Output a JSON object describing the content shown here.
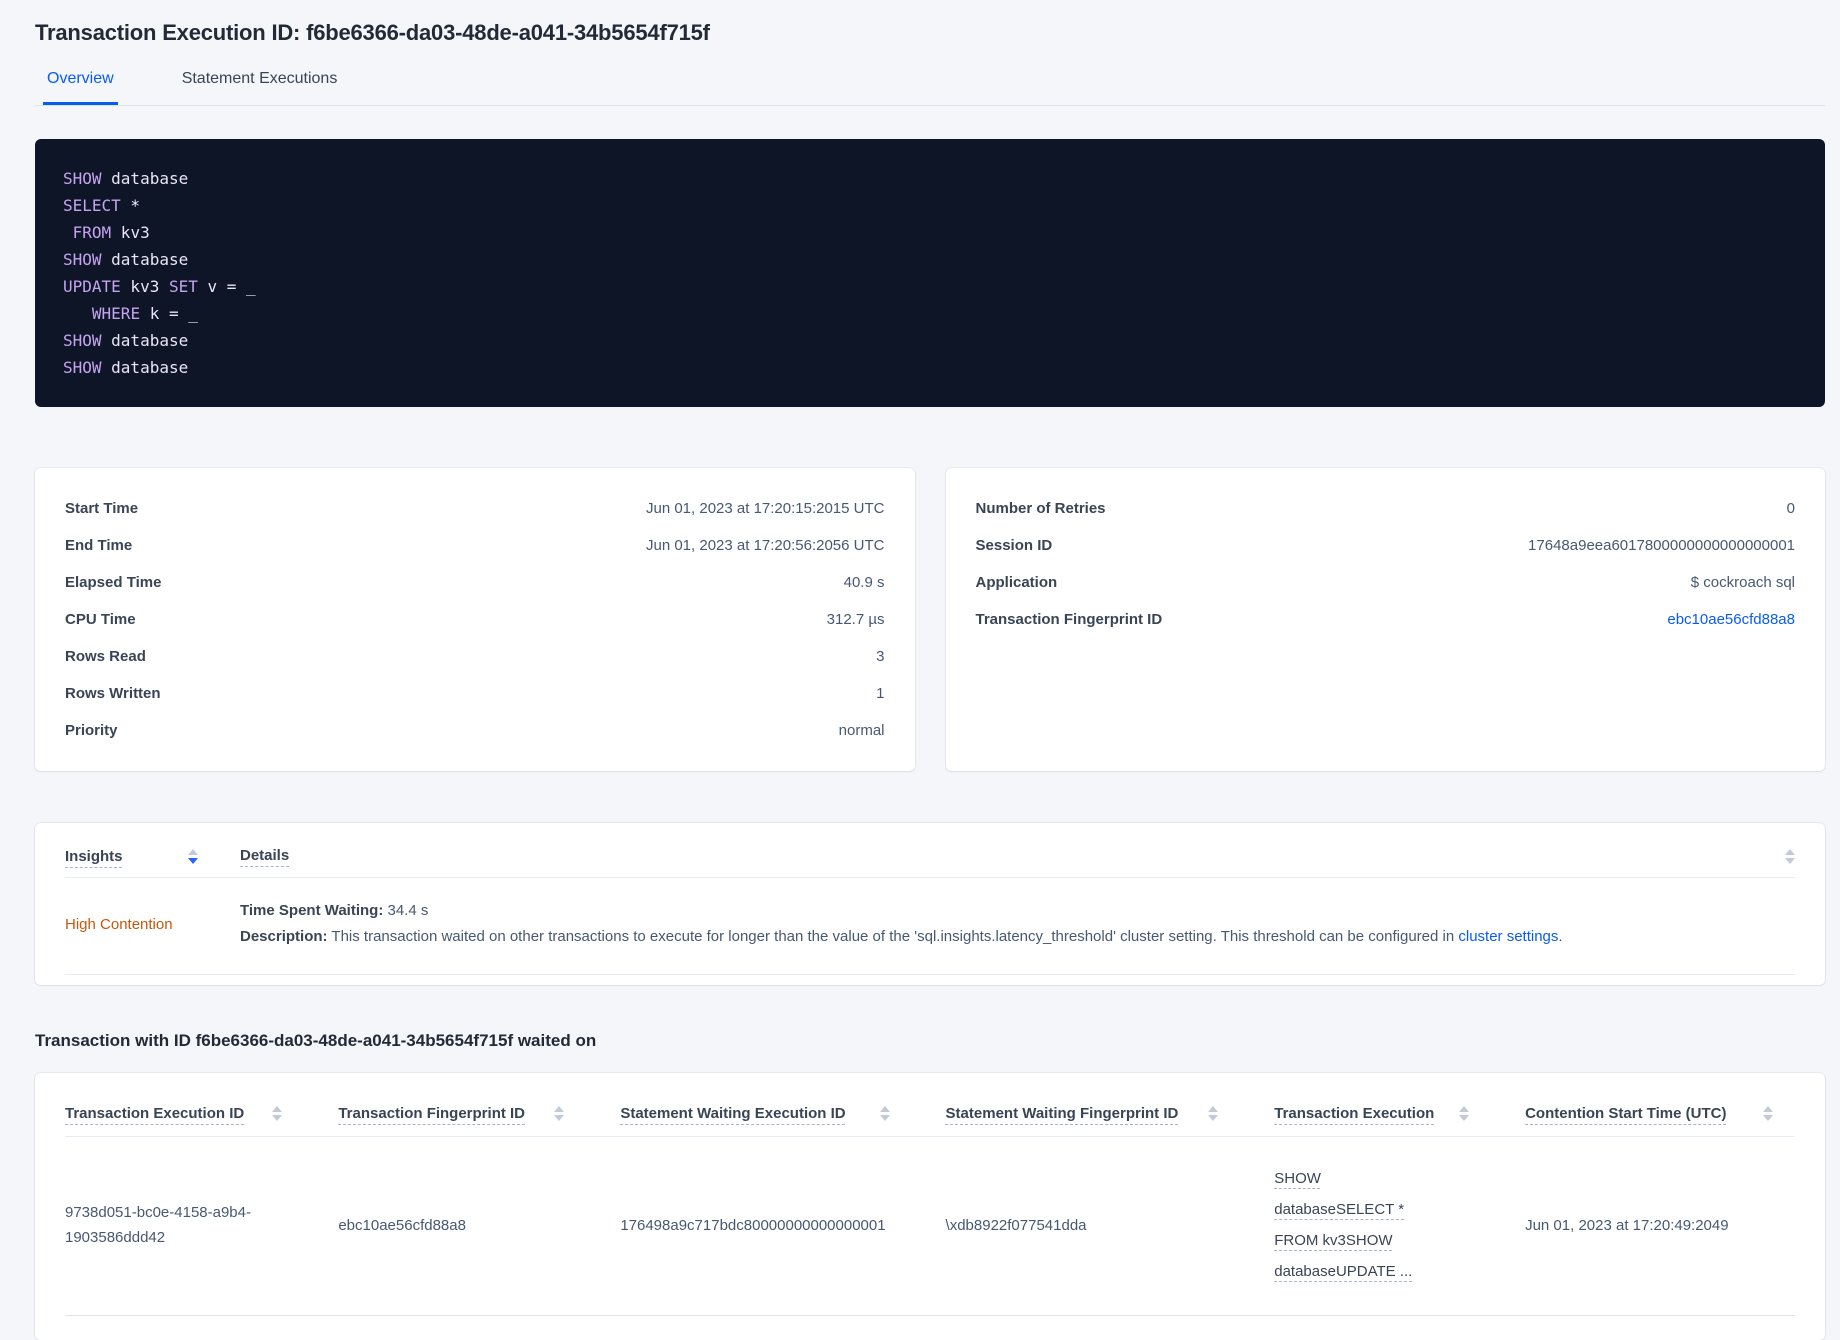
{
  "header": {
    "title": "Transaction Execution ID: f6be6366-da03-48de-a041-34b5654f715f",
    "tabs": [
      {
        "label": "Overview",
        "active": true
      },
      {
        "label": "Statement Executions",
        "active": false
      }
    ]
  },
  "colors": {
    "accent_blue": "#0a5bf0",
    "sort_active_blue": "#2962ff",
    "insight_orange": "#c2590e",
    "code_background": "#0d1527",
    "code_keyword": "#c5a3f0",
    "code_text": "#e9e5f6"
  },
  "sql_box": {
    "lines": [
      [
        {
          "t": "kw",
          "v": "SHOW"
        },
        {
          "t": "id",
          "v": " database"
        }
      ],
      [
        {
          "t": "kw",
          "v": "SELECT"
        },
        {
          "t": "op",
          "v": " *"
        }
      ],
      [
        {
          "t": "id",
          "v": " "
        },
        {
          "t": "kw",
          "v": "FROM"
        },
        {
          "t": "id",
          "v": " kv3"
        }
      ],
      [
        {
          "t": "kw",
          "v": "SHOW"
        },
        {
          "t": "id",
          "v": " database"
        }
      ],
      [
        {
          "t": "kw",
          "v": "UPDATE"
        },
        {
          "t": "id",
          "v": " kv3 "
        },
        {
          "t": "kw",
          "v": "SET"
        },
        {
          "t": "id",
          "v": " v = _"
        }
      ],
      [
        {
          "t": "id",
          "v": "   "
        },
        {
          "t": "kw",
          "v": "WHERE"
        },
        {
          "t": "id",
          "v": " k = _"
        }
      ],
      [
        {
          "t": "kw",
          "v": "SHOW"
        },
        {
          "t": "id",
          "v": " database"
        }
      ],
      [
        {
          "t": "kw",
          "v": "SHOW"
        },
        {
          "t": "id",
          "v": " database"
        }
      ]
    ]
  },
  "summary_left": {
    "rows": [
      {
        "label": "Start Time",
        "value": "Jun 01, 2023 at 17:20:15:2015 UTC"
      },
      {
        "label": "End Time",
        "value": "Jun 01, 2023 at 17:20:56:2056 UTC"
      },
      {
        "label": "Elapsed Time",
        "value": "40.9 s"
      },
      {
        "label": "CPU Time",
        "value": "312.7 µs"
      },
      {
        "label": "Rows Read",
        "value": "3"
      },
      {
        "label": "Rows Written",
        "value": "1"
      },
      {
        "label": "Priority",
        "value": "normal"
      }
    ]
  },
  "summary_right": {
    "rows": [
      {
        "label": "Number of Retries",
        "value": "0"
      },
      {
        "label": "Session ID",
        "value": "17648a9eea6017800000000000000001"
      },
      {
        "label": "Application",
        "value": "$ cockroach sql"
      },
      {
        "label": "Transaction Fingerprint ID",
        "value": "ebc10ae56cfd88a8",
        "link": true
      }
    ]
  },
  "insights_table": {
    "columns": {
      "insights": "Insights",
      "details": "Details"
    },
    "row": {
      "insight": "High Contention",
      "waiting_label": "Time Spent Waiting:",
      "waiting_value": " 34.4 s",
      "desc_label": "Description:",
      "desc_text": " This transaction waited on other transactions to execute for longer than the value of the 'sql.insights.latency_threshold' cluster setting. This threshold can be configured in ",
      "desc_link": "cluster settings",
      "desc_end": "."
    }
  },
  "waited_section": {
    "heading": "Transaction with ID f6be6366-da03-48de-a041-34b5654f715f waited on",
    "columns": [
      "Transaction Execution ID",
      "Transaction Fingerprint ID",
      "Statement Waiting Execution ID",
      "Statement Waiting Fingerprint ID",
      "Transaction Execution",
      "Contention Start Time (UTC)"
    ],
    "rows": [
      [
        "9738d051-bc0e-4158-a9b4-1903586ddd42",
        "ebc10ae56cfd88a8",
        "176498a9c717bdc80000000000000001",
        "\\xdb8922f077541dda",
        "SHOW databaseSELECT * FROM kv3SHOW databaseUPDATE ...",
        "Jun 01, 2023 at 17:20:49:2049"
      ]
    ]
  }
}
